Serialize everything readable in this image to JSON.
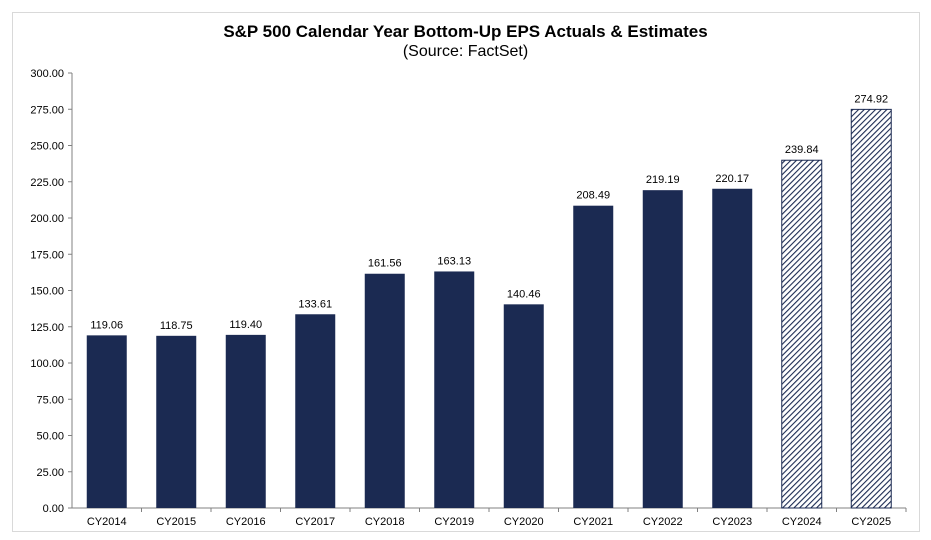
{
  "chart_data": {
    "type": "bar",
    "title": "S&P 500 Calendar Year Bottom-Up EPS Actuals & Estimates",
    "subtitle": "(Source: FactSet)",
    "categories": [
      "CY2014",
      "CY2015",
      "CY2016",
      "CY2017",
      "CY2018",
      "CY2019",
      "CY2020",
      "CY2021",
      "CY2022",
      "CY2023",
      "CY2024",
      "CY2025"
    ],
    "values": [
      119.06,
      118.75,
      119.4,
      133.61,
      161.56,
      163.13,
      140.46,
      208.49,
      219.19,
      220.17,
      239.84,
      274.92
    ],
    "value_labels": [
      "119.06",
      "118.75",
      "119.40",
      "133.61",
      "161.56",
      "163.13",
      "140.46",
      "208.49",
      "219.19",
      "220.17",
      "239.84",
      "274.92"
    ],
    "estimate_flags": [
      false,
      false,
      false,
      false,
      false,
      false,
      false,
      false,
      false,
      false,
      true,
      true
    ],
    "ylim": [
      0,
      300
    ],
    "yticks": [
      "0.00",
      "25.00",
      "50.00",
      "75.00",
      "100.00",
      "125.00",
      "150.00",
      "175.00",
      "200.00",
      "225.00",
      "250.00",
      "275.00",
      "300.00"
    ],
    "grid": false,
    "legend": "none",
    "colors": {
      "actual": "#1b2a52",
      "estimate": "#1b2a52",
      "axis": "#808080"
    }
  }
}
